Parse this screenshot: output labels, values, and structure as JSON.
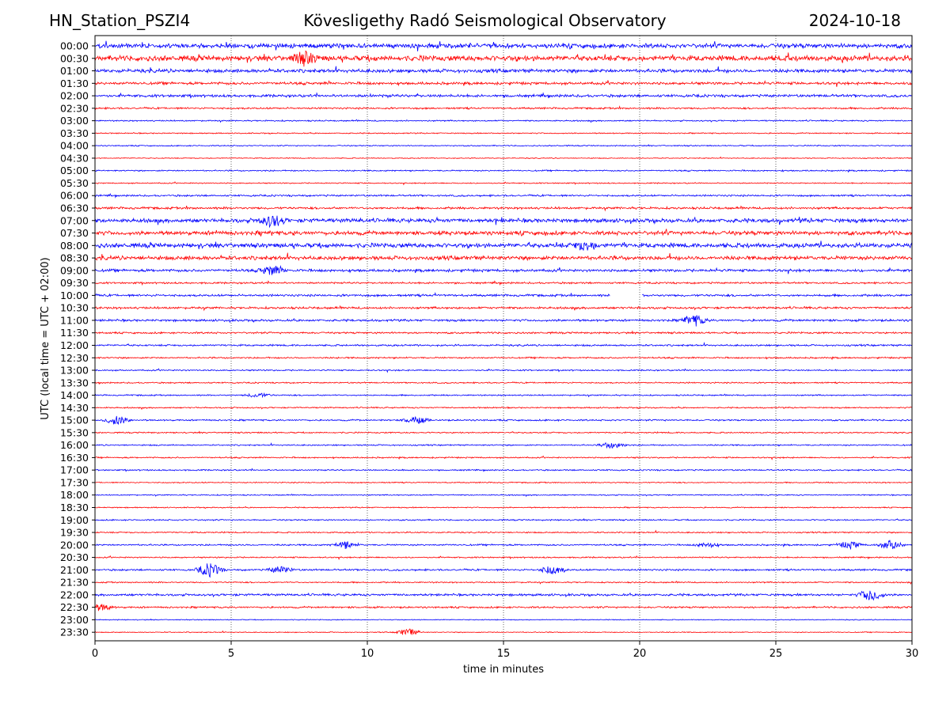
{
  "header": {
    "station": "HN_Station_PSZI4",
    "title": "Kövesligethy Radó Seismological Observatory",
    "date": "2024-10-18"
  },
  "colors": {
    "even": "#0000ff",
    "odd": "#ff0000",
    "axis": "#000000"
  },
  "chart_data": {
    "type": "line",
    "subtype": "helicorder",
    "xlabel": "time in minutes",
    "ylabel": "UTC (local time = UTC + 02:00)",
    "xlim": [
      0,
      30
    ],
    "xticks": [
      0,
      5,
      10,
      15,
      20,
      25,
      30
    ],
    "vertical_gridlines_at": [
      5,
      10,
      15,
      20,
      25
    ],
    "row_labels": [
      "00:00",
      "00:30",
      "01:00",
      "01:30",
      "02:00",
      "02:30",
      "03:00",
      "03:30",
      "04:00",
      "04:30",
      "05:00",
      "05:30",
      "06:00",
      "06:30",
      "07:00",
      "07:30",
      "08:00",
      "08:30",
      "09:00",
      "09:30",
      "10:00",
      "10:30",
      "11:00",
      "11:30",
      "12:00",
      "12:30",
      "13:00",
      "13:30",
      "14:00",
      "14:30",
      "15:00",
      "15:30",
      "16:00",
      "16:30",
      "17:00",
      "17:30",
      "18:00",
      "18:30",
      "19:00",
      "19:30",
      "20:00",
      "20:30",
      "21:00",
      "21:30",
      "22:00",
      "22:30",
      "23:00",
      "23:30"
    ],
    "row_activity": [
      1.0,
      1.2,
      0.8,
      0.6,
      0.6,
      0.4,
      0.3,
      0.25,
      0.25,
      0.2,
      0.3,
      0.25,
      0.4,
      0.5,
      0.9,
      0.9,
      1.0,
      0.9,
      0.6,
      0.4,
      0.5,
      0.5,
      0.5,
      0.4,
      0.4,
      0.35,
      0.3,
      0.3,
      0.3,
      0.3,
      0.35,
      0.3,
      0.3,
      0.3,
      0.3,
      0.25,
      0.25,
      0.25,
      0.3,
      0.3,
      0.35,
      0.3,
      0.4,
      0.3,
      0.5,
      0.4,
      0.2,
      0.2
    ],
    "gap": {
      "row": "10:00",
      "from_minute": 18.9,
      "to_minute": 20.1
    },
    "bursts": [
      {
        "row": "15:00",
        "minute": 0.8,
        "strength": 4
      },
      {
        "row": "15:00",
        "minute": 11.8,
        "strength": 3
      },
      {
        "row": "21:00",
        "minute": 4.2,
        "strength": 6
      },
      {
        "row": "21:00",
        "minute": 6.8,
        "strength": 3
      },
      {
        "row": "21:00",
        "minute": 16.8,
        "strength": 4
      },
      {
        "row": "20:00",
        "minute": 9.2,
        "strength": 3
      },
      {
        "row": "20:00",
        "minute": 22.5,
        "strength": 2
      },
      {
        "row": "20:00",
        "minute": 27.7,
        "strength": 3
      },
      {
        "row": "20:00",
        "minute": 29.2,
        "strength": 4
      },
      {
        "row": "22:00",
        "minute": 28.5,
        "strength": 5
      },
      {
        "row": "23:30",
        "minute": 11.5,
        "strength": 3
      },
      {
        "row": "22:30",
        "minute": 0.2,
        "strength": 3
      },
      {
        "row": "16:00",
        "minute": 19.0,
        "strength": 3
      },
      {
        "row": "14:00",
        "minute": 6.0,
        "strength": 2
      },
      {
        "row": "11:00",
        "minute": 22.0,
        "strength": 5
      },
      {
        "row": "08:00",
        "minute": 18.0,
        "strength": 4
      },
      {
        "row": "07:00",
        "minute": 6.5,
        "strength": 5
      },
      {
        "row": "09:00",
        "minute": 6.5,
        "strength": 4
      },
      {
        "row": "00:30",
        "minute": 7.7,
        "strength": 5
      }
    ]
  }
}
